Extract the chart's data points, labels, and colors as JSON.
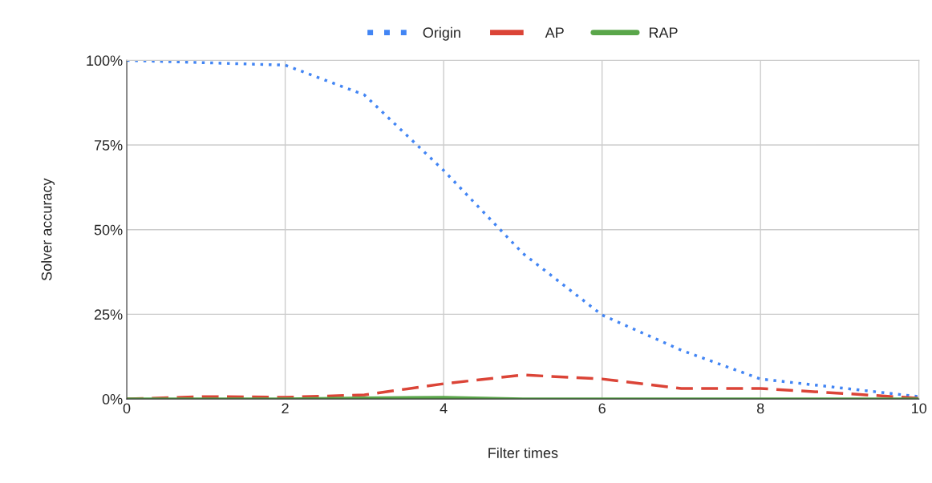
{
  "chart_data": {
    "type": "line",
    "xlabel": "Filter times",
    "ylabel": "Solver accuracy",
    "x": [
      0,
      1,
      2,
      3,
      4,
      5,
      6,
      7,
      8,
      9,
      10
    ],
    "series": [
      {
        "name": "Origin",
        "color": "#4285f4",
        "line_style": "dotted",
        "values": [
          100,
          99.3,
          98.6,
          89.8,
          67.5,
          43,
          24.8,
          14.4,
          5.9,
          3.3,
          0.7
        ]
      },
      {
        "name": "AP",
        "color": "#db4437",
        "line_style": "dashed",
        "values": [
          0,
          0.7,
          0.5,
          1.2,
          4.5,
          7.1,
          5.9,
          3.1,
          3.1,
          1.7,
          0.2
        ]
      },
      {
        "name": "RAP",
        "color": "#5aa64a",
        "line_style": "solid",
        "values": [
          0,
          0,
          0,
          0.3,
          0.5,
          0,
          0,
          0,
          0,
          0,
          0
        ]
      }
    ],
    "xlim": [
      0,
      10
    ],
    "xticks": [
      0,
      2,
      4,
      6,
      8,
      10
    ],
    "ylim": [
      0,
      100
    ],
    "yticks": [
      {
        "value": 0,
        "label": "0%"
      },
      {
        "value": 25,
        "label": "25%"
      },
      {
        "value": 50,
        "label": "50%"
      },
      {
        "value": 75,
        "label": "75%"
      },
      {
        "value": 100,
        "label": "100%"
      }
    ],
    "grid": true,
    "legend": "top"
  }
}
